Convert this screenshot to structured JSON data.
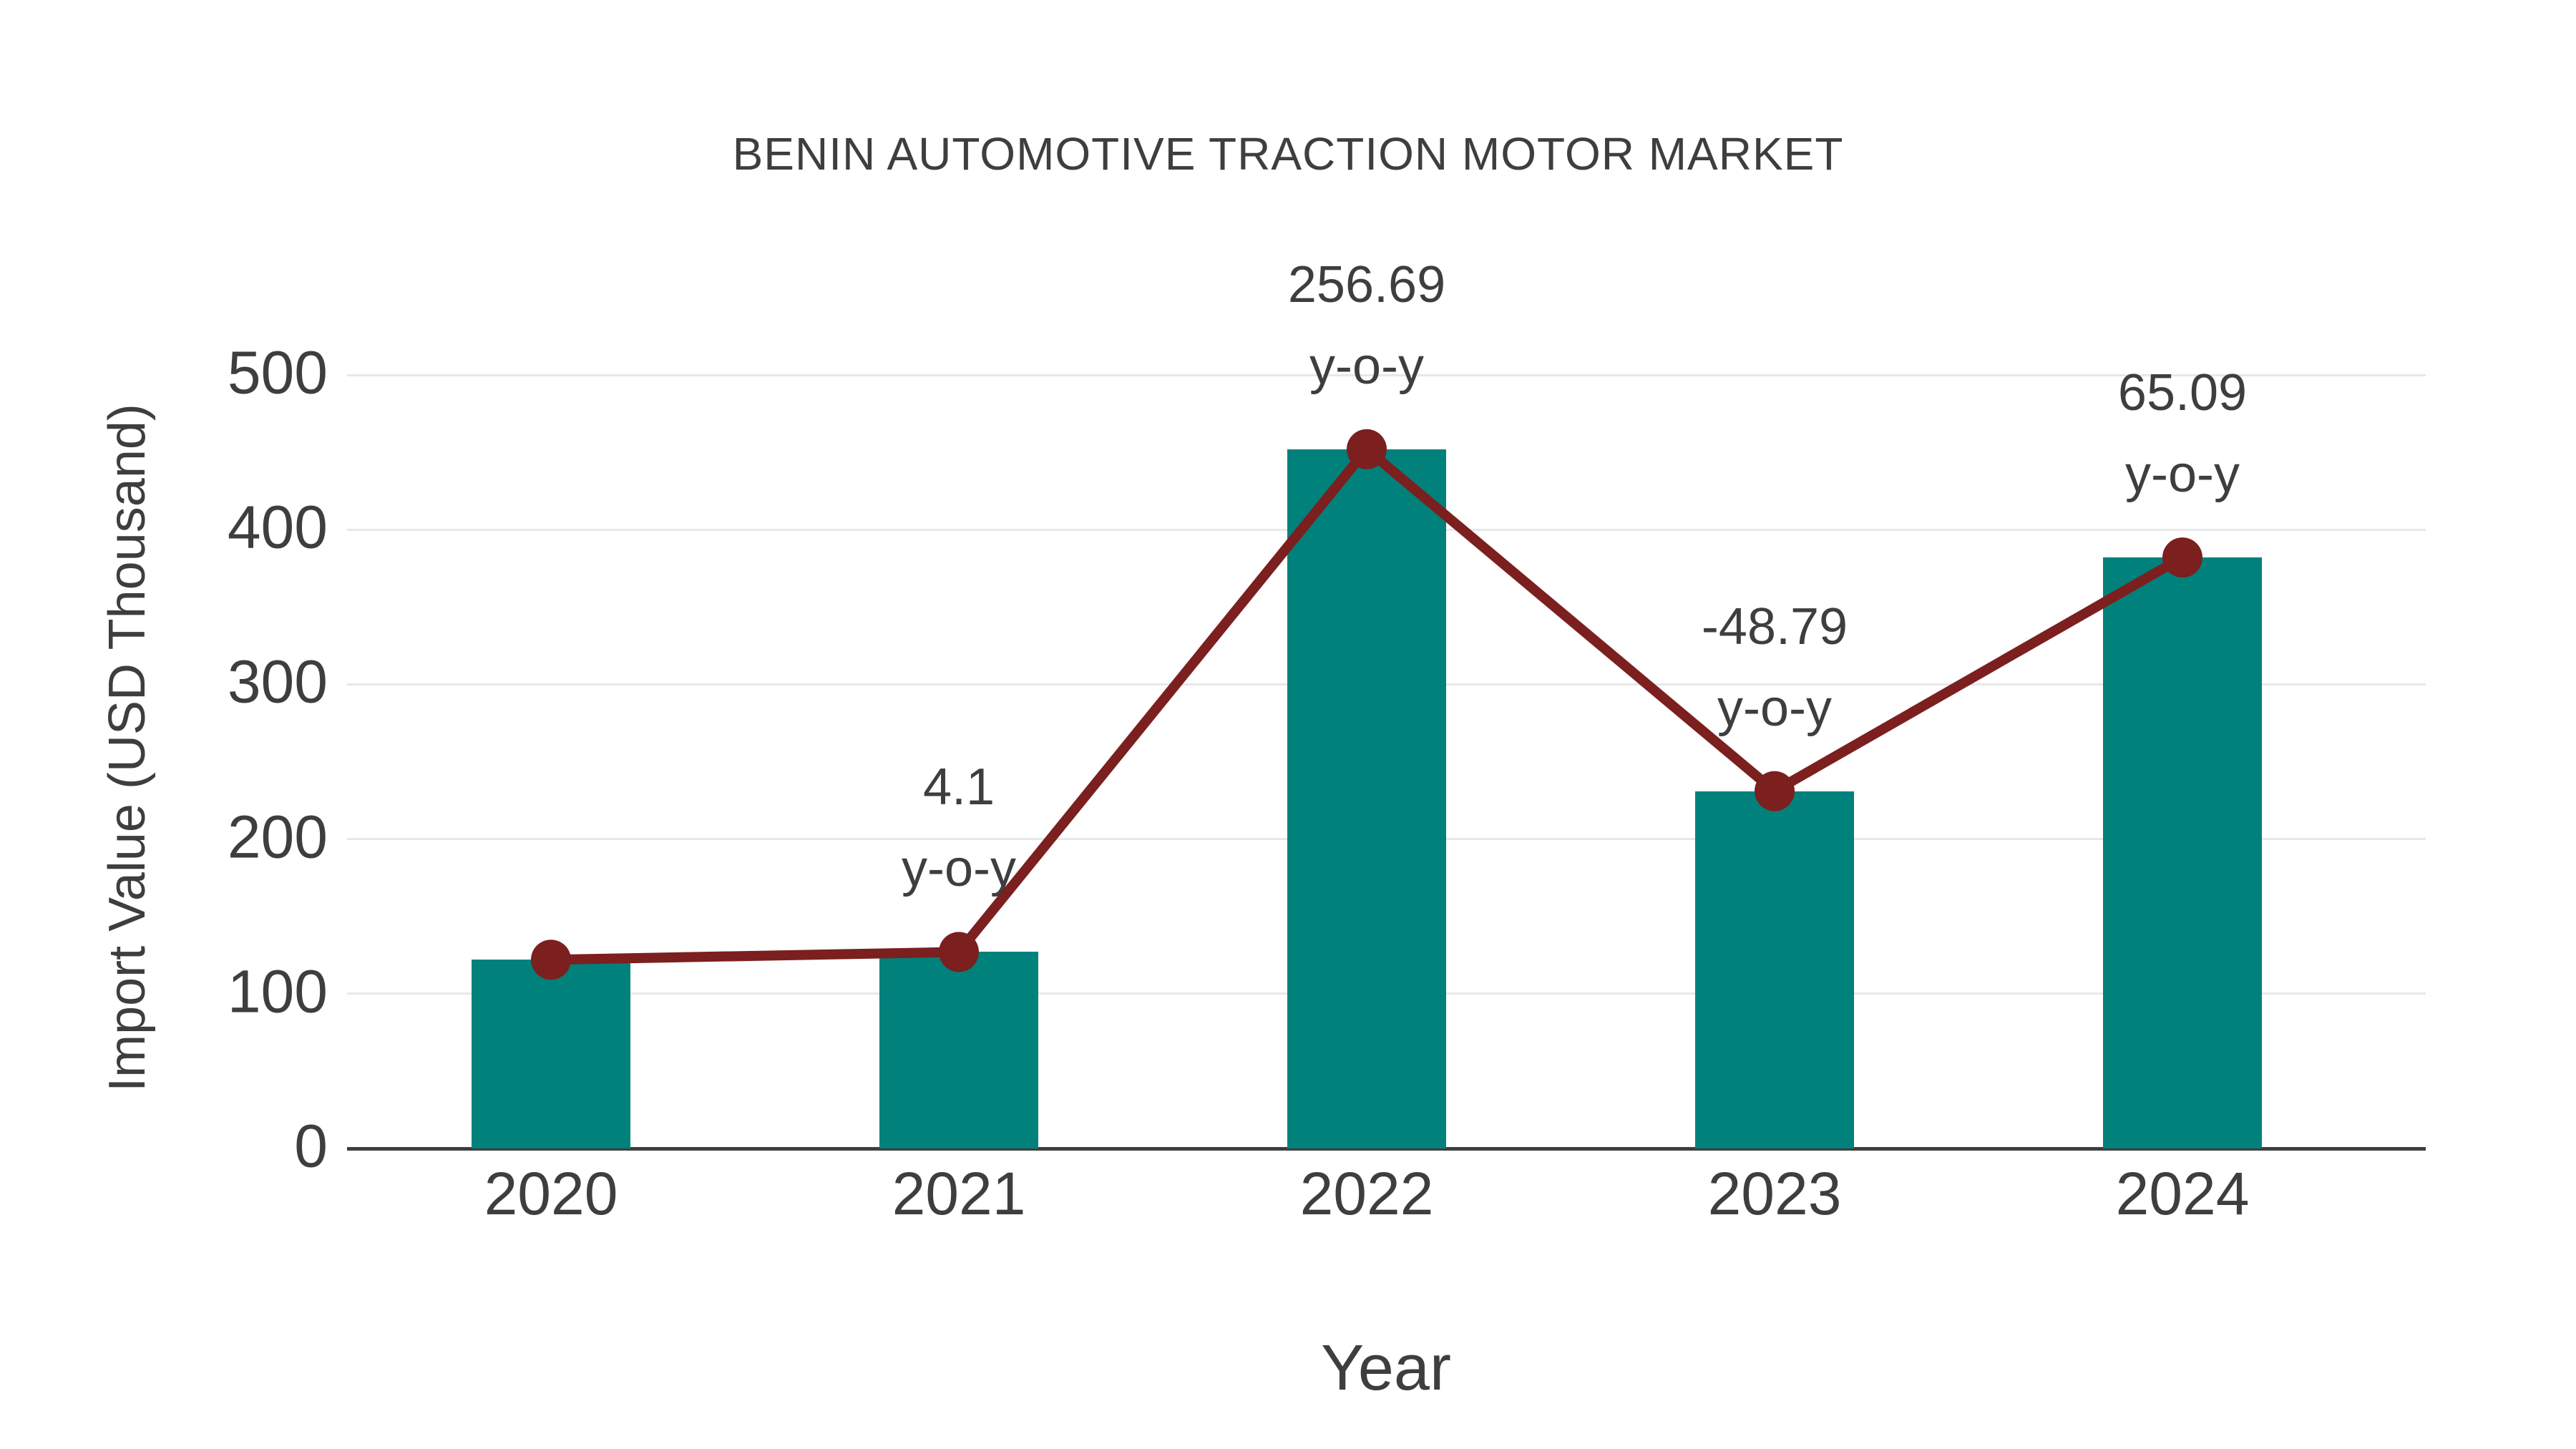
{
  "title": "BENIN AUTOMOTIVE TRACTION MOTOR MARKET",
  "chart_data": {
    "type": "bar",
    "title": "BENIN AUTOMOTIVE TRACTION MOTOR MARKET",
    "xlabel": "Year",
    "ylabel": "Import Value (USD Thousand)",
    "categories": [
      "2020",
      "2021",
      "2022",
      "2023",
      "2024"
    ],
    "series": [
      {
        "name": "Import Value (USD Thousand)",
        "type": "bar",
        "values": [
          122,
          127,
          452,
          231,
          382
        ]
      },
      {
        "name": "y-o-y growth",
        "type": "line",
        "values": [
          null,
          4.1,
          256.69,
          -48.79,
          65.09
        ]
      }
    ],
    "annotations": {
      "suffix": "y-o-y",
      "labels": [
        null,
        "4.1",
        "256.69",
        "-48.79",
        "65.09"
      ]
    },
    "yticks": [
      0,
      100,
      200,
      300,
      400,
      500
    ],
    "ylim": [
      0,
      500
    ],
    "grid": true,
    "legend": false
  },
  "colors": {
    "bar": "#00817b",
    "line": "#7c1f1f",
    "marker": "#7c1f1f",
    "grid": "#e8e8e8",
    "axis": "#3e3e3e",
    "text": "#3e3e3e",
    "background": "#ffffff"
  }
}
